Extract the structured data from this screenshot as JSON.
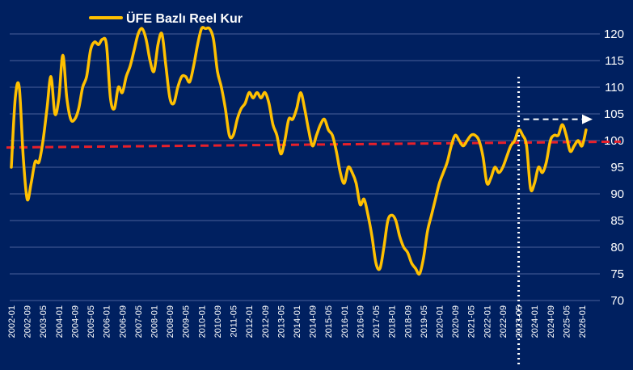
{
  "chart_data": {
    "type": "line",
    "title": "",
    "xlabel": "",
    "ylabel": "",
    "ylim": [
      70,
      120
    ],
    "yticks": [
      70,
      75,
      80,
      85,
      90,
      95,
      100,
      105,
      110,
      115,
      120
    ],
    "grid": true,
    "legend_position": "top-left",
    "legend": [
      "ÜFE Bazlı Reel Kur"
    ],
    "xtick_labels": [
      "2002-01",
      "2002-09",
      "2003-05",
      "2004-01",
      "2004-09",
      "2005-05",
      "2006-01",
      "2006-09",
      "2007-05",
      "2008-01",
      "2008-09",
      "2009-05",
      "2010-01",
      "2010-09",
      "2011-05",
      "2012-01",
      "2012-09",
      "2013-05",
      "2014-01",
      "2014-09",
      "2015-05",
      "2016-01",
      "2016-09",
      "2017-05",
      "2018-01",
      "2018-09",
      "2019-05",
      "2020-01",
      "2020-09",
      "2021-05",
      "2022-01",
      "2022-09",
      "2023-05",
      "2024-01",
      "2024-09",
      "2025-05",
      "2026-01"
    ],
    "reference_line": {
      "value": 100,
      "color": "#e8202a",
      "style": "dashed"
    },
    "marker_date": "2023-05",
    "arrow_level": 104,
    "series": [
      {
        "name": "ÜFE Bazlı Reel Kur",
        "color": "#ffc000",
        "points": [
          [
            "2002-01",
            95
          ],
          [
            "2002-03",
            108
          ],
          [
            "2002-05",
            110
          ],
          [
            "2002-07",
            97
          ],
          [
            "2002-09",
            89
          ],
          [
            "2002-11",
            92
          ],
          [
            "2003-01",
            96
          ],
          [
            "2003-03",
            96
          ],
          [
            "2003-05",
            100
          ],
          [
            "2003-07",
            106
          ],
          [
            "2003-09",
            112
          ],
          [
            "2003-11",
            105
          ],
          [
            "2004-01",
            108
          ],
          [
            "2004-03",
            116
          ],
          [
            "2004-05",
            108
          ],
          [
            "2004-07",
            104
          ],
          [
            "2004-09",
            104
          ],
          [
            "2004-11",
            106
          ],
          [
            "2005-01",
            110
          ],
          [
            "2005-03",
            112
          ],
          [
            "2005-05",
            117
          ],
          [
            "2005-07",
            118.5
          ],
          [
            "2005-09",
            118
          ],
          [
            "2005-11",
            119
          ],
          [
            "2006-01",
            118
          ],
          [
            "2006-03",
            108
          ],
          [
            "2006-05",
            106
          ],
          [
            "2006-07",
            110
          ],
          [
            "2006-09",
            109
          ],
          [
            "2006-11",
            112
          ],
          [
            "2007-01",
            114
          ],
          [
            "2007-03",
            117
          ],
          [
            "2007-05",
            120
          ],
          [
            "2007-07",
            121
          ],
          [
            "2007-09",
            119
          ],
          [
            "2007-11",
            115
          ],
          [
            "2008-01",
            113
          ],
          [
            "2008-03",
            118
          ],
          [
            "2008-05",
            120
          ],
          [
            "2008-07",
            114
          ],
          [
            "2008-09",
            108
          ],
          [
            "2008-11",
            107
          ],
          [
            "2009-01",
            110
          ],
          [
            "2009-03",
            112
          ],
          [
            "2009-05",
            112
          ],
          [
            "2009-07",
            111
          ],
          [
            "2009-09",
            114
          ],
          [
            "2009-11",
            118
          ],
          [
            "2010-01",
            121
          ],
          [
            "2010-03",
            121
          ],
          [
            "2010-05",
            121
          ],
          [
            "2010-07",
            119
          ],
          [
            "2010-09",
            113
          ],
          [
            "2010-11",
            110
          ],
          [
            "2011-01",
            106
          ],
          [
            "2011-03",
            101
          ],
          [
            "2011-05",
            101
          ],
          [
            "2011-07",
            104
          ],
          [
            "2011-09",
            106
          ],
          [
            "2011-11",
            107
          ],
          [
            "2012-01",
            109
          ],
          [
            "2012-03",
            108
          ],
          [
            "2012-05",
            109
          ],
          [
            "2012-07",
            108
          ],
          [
            "2012-09",
            109
          ],
          [
            "2012-11",
            107
          ],
          [
            "2013-01",
            103
          ],
          [
            "2013-03",
            101
          ],
          [
            "2013-05",
            97.5
          ],
          [
            "2013-07",
            100
          ],
          [
            "2013-09",
            104
          ],
          [
            "2013-11",
            104
          ],
          [
            "2014-01",
            106
          ],
          [
            "2014-03",
            109
          ],
          [
            "2014-05",
            106
          ],
          [
            "2014-07",
            102
          ],
          [
            "2014-09",
            99
          ],
          [
            "2014-11",
            101
          ],
          [
            "2015-01",
            103
          ],
          [
            "2015-03",
            104
          ],
          [
            "2015-05",
            102
          ],
          [
            "2015-07",
            101
          ],
          [
            "2015-09",
            98
          ],
          [
            "2015-11",
            94
          ],
          [
            "2016-01",
            92
          ],
          [
            "2016-03",
            95
          ],
          [
            "2016-05",
            94
          ],
          [
            "2016-07",
            92
          ],
          [
            "2016-09",
            88
          ],
          [
            "2016-11",
            89
          ],
          [
            "2017-01",
            86
          ],
          [
            "2017-03",
            82
          ],
          [
            "2017-05",
            77
          ],
          [
            "2017-07",
            76
          ],
          [
            "2017-09",
            80
          ],
          [
            "2017-11",
            85
          ],
          [
            "2018-01",
            86
          ],
          [
            "2018-03",
            85
          ],
          [
            "2018-05",
            82
          ],
          [
            "2018-07",
            80
          ],
          [
            "2018-09",
            79
          ],
          [
            "2018-11",
            77
          ],
          [
            "2019-01",
            76
          ],
          [
            "2019-03",
            75
          ],
          [
            "2019-05",
            78
          ],
          [
            "2019-07",
            83
          ],
          [
            "2019-09",
            86
          ],
          [
            "2019-11",
            89
          ],
          [
            "2020-01",
            92
          ],
          [
            "2020-03",
            94
          ],
          [
            "2020-05",
            96
          ],
          [
            "2020-07",
            99
          ],
          [
            "2020-09",
            101
          ],
          [
            "2020-11",
            100
          ],
          [
            "2021-01",
            99
          ],
          [
            "2021-03",
            100
          ],
          [
            "2021-05",
            101
          ],
          [
            "2021-07",
            101
          ],
          [
            "2021-09",
            100
          ],
          [
            "2021-11",
            97
          ],
          [
            "2022-01",
            92
          ],
          [
            "2022-03",
            93
          ],
          [
            "2022-05",
            95
          ],
          [
            "2022-07",
            94
          ],
          [
            "2022-09",
            95
          ],
          [
            "2022-11",
            97
          ],
          [
            "2023-01",
            99
          ],
          [
            "2023-03",
            100
          ],
          [
            "2023-05",
            102
          ],
          [
            "2023-07",
            101
          ],
          [
            "2023-09",
            99
          ],
          [
            "2023-11",
            91
          ],
          [
            "2024-01",
            92
          ],
          [
            "2024-03",
            95
          ],
          [
            "2024-05",
            94
          ],
          [
            "2024-07",
            96
          ],
          [
            "2024-09",
            100
          ],
          [
            "2024-11",
            101
          ],
          [
            "2025-01",
            101
          ],
          [
            "2025-03",
            103
          ],
          [
            "2025-05",
            101
          ],
          [
            "2025-07",
            98
          ],
          [
            "2025-09",
            99
          ],
          [
            "2025-11",
            100
          ],
          [
            "2026-01",
            99
          ],
          [
            "2026-03",
            102
          ]
        ]
      }
    ]
  }
}
